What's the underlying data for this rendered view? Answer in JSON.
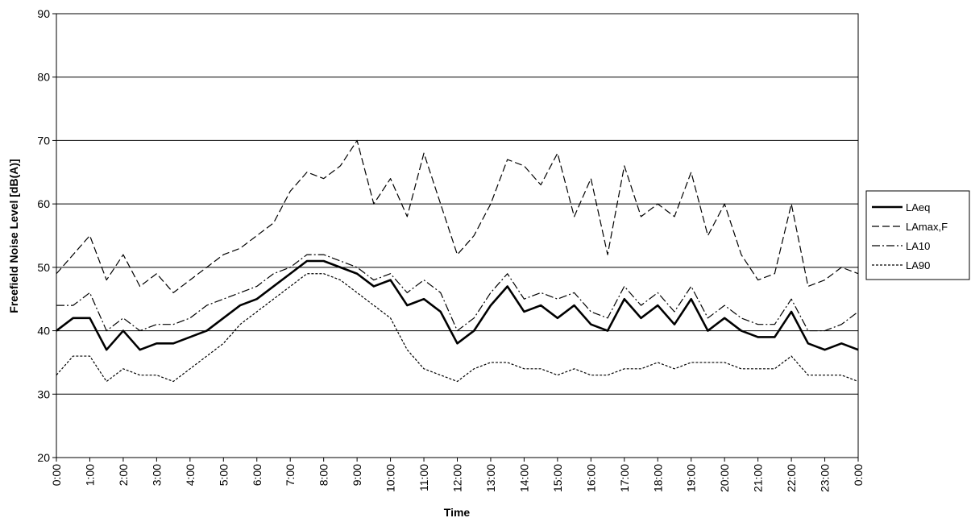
{
  "chart_data": {
    "type": "line",
    "title": "",
    "xlabel": "Time",
    "ylabel": "Freefield Noise Level [dB(A)]",
    "ylim": [
      20,
      90
    ],
    "yticks": [
      20,
      30,
      40,
      50,
      60,
      70,
      80,
      90
    ],
    "xlim_hours": [
      0,
      24
    ],
    "x_tick_labels": [
      "0:00",
      "1:00",
      "2:00",
      "3:00",
      "4:00",
      "5:00",
      "6:00",
      "7:00",
      "8:00",
      "9:00",
      "10:00",
      "11:00",
      "12:00",
      "13:00",
      "14:00",
      "15:00",
      "16:00",
      "17:00",
      "18:00",
      "19:00",
      "20:00",
      "21:00",
      "22:00",
      "23:00",
      "0:00"
    ],
    "grid": "horizontal",
    "legend_position": "right",
    "x_hours": [
      0,
      0.5,
      1,
      1.5,
      2,
      2.5,
      3,
      3.5,
      4,
      4.5,
      5,
      5.5,
      6,
      6.5,
      7,
      7.5,
      8,
      8.5,
      9,
      9.5,
      10,
      10.5,
      11,
      11.5,
      12,
      12.5,
      13,
      13.5,
      14,
      14.5,
      15,
      15.5,
      16,
      16.5,
      17,
      17.5,
      18,
      18.5,
      19,
      19.5,
      20,
      20.5,
      21,
      21.5,
      22,
      22.5,
      23,
      23.5,
      24
    ],
    "series": [
      {
        "name": "LAeq",
        "style": "solid-thick",
        "values": [
          40,
          42,
          42,
          37,
          40,
          37,
          38,
          38,
          39,
          40,
          42,
          44,
          45,
          47,
          49,
          51,
          51,
          50,
          49,
          47,
          48,
          44,
          45,
          43,
          38,
          40,
          44,
          47,
          43,
          44,
          42,
          44,
          41,
          40,
          45,
          42,
          44,
          41,
          45,
          40,
          42,
          40,
          39,
          39,
          43,
          38,
          37,
          38,
          37
        ]
      },
      {
        "name": "LAmax,F",
        "style": "dashed",
        "values": [
          49,
          52,
          55,
          48,
          52,
          47,
          49,
          46,
          48,
          50,
          52,
          53,
          55,
          57,
          62,
          65,
          64,
          66,
          70,
          60,
          64,
          58,
          68,
          60,
          52,
          55,
          60,
          67,
          66,
          63,
          68,
          58,
          64,
          52,
          66,
          58,
          60,
          58,
          65,
          55,
          60,
          52,
          48,
          49,
          60,
          47,
          48,
          50,
          49
        ]
      },
      {
        "name": "LA10",
        "style": "dash-dot",
        "values": [
          44,
          44,
          46,
          40,
          42,
          40,
          41,
          41,
          42,
          44,
          45,
          46,
          47,
          49,
          50,
          52,
          52,
          51,
          50,
          48,
          49,
          46,
          48,
          46,
          40,
          42,
          46,
          49,
          45,
          46,
          45,
          46,
          43,
          42,
          47,
          44,
          46,
          43,
          47,
          42,
          44,
          42,
          41,
          41,
          45,
          40,
          40,
          41,
          43
        ]
      },
      {
        "name": "LA90",
        "style": "dotted",
        "values": [
          33,
          36,
          36,
          32,
          34,
          33,
          33,
          32,
          34,
          36,
          38,
          41,
          43,
          45,
          47,
          49,
          49,
          48,
          46,
          44,
          42,
          37,
          34,
          33,
          32,
          34,
          35,
          35,
          34,
          34,
          33,
          34,
          33,
          33,
          34,
          34,
          35,
          34,
          35,
          35,
          35,
          34,
          34,
          34,
          36,
          33,
          33,
          33,
          32
        ]
      }
    ]
  }
}
